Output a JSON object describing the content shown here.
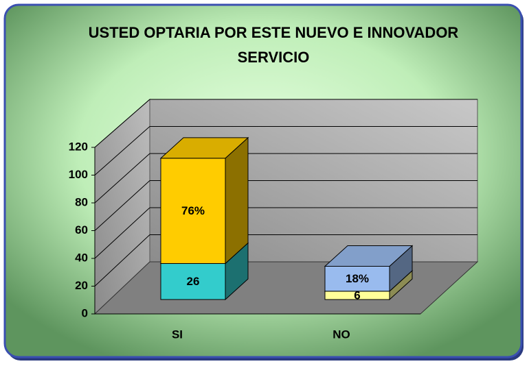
{
  "chart_data": {
    "type": "bar3d_stacked",
    "title": "USTED OPTARIA POR ESTE NUEVO E INNOVADOR SERVICIO",
    "categories": [
      "SI",
      "NO"
    ],
    "series": [
      {
        "color": "#33cccc",
        "values": [
          26,
          6
        ]
      },
      {
        "color": "#ffcc00",
        "values": [
          76,
          18
        ],
        "value_labels": [
          "76%",
          "18%"
        ]
      }
    ],
    "point_colors": [
      [
        "#33cccc",
        "#ffcc00"
      ],
      [
        "#ffff99",
        "#99bbee"
      ]
    ],
    "ylim": [
      0,
      120
    ],
    "yticks": [
      0,
      20,
      40,
      60,
      80,
      100,
      120
    ],
    "grid": true
  }
}
